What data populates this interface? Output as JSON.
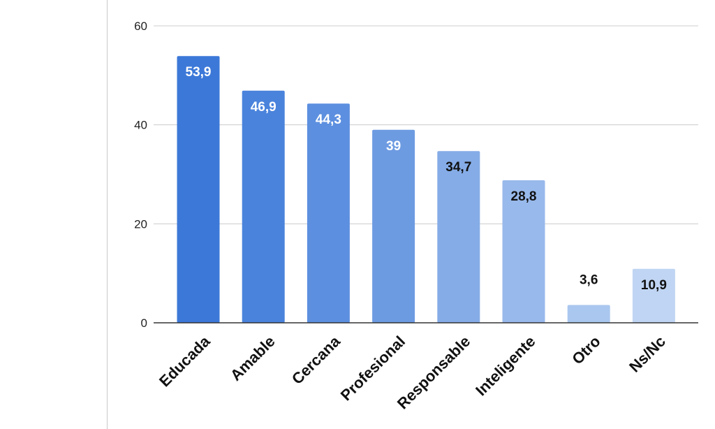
{
  "chart_data": {
    "type": "bar",
    "categories": [
      "Educada",
      "Amable",
      "Cercana",
      "Profesional",
      "Responsable",
      "Inteligente",
      "Otro",
      "Ns/Nc"
    ],
    "values": [
      53.9,
      46.9,
      44.3,
      39,
      34.7,
      28.8,
      3.6,
      10.9
    ],
    "value_labels": [
      "53,9",
      "46,9",
      "44,3",
      "39",
      "34,7",
      "28,8",
      "3,6",
      "10,9"
    ],
    "label_colors": [
      "#ffffff",
      "#ffffff",
      "#ffffff",
      "#ffffff",
      "#111111",
      "#111111",
      "#111111",
      "#111111"
    ],
    "bar_colors": [
      "#3c78d8",
      "#4a83dc",
      "#5c8fdf",
      "#6d9be2",
      "#85ace7",
      "#98b9eb",
      "#aac7ef",
      "#c0d5f3"
    ],
    "yticks": [
      "0",
      "20",
      "40",
      "60"
    ],
    "ylim": [
      0,
      60
    ],
    "grid": true,
    "legend": "none",
    "title": "",
    "xlabel": "",
    "ylabel": ""
  }
}
